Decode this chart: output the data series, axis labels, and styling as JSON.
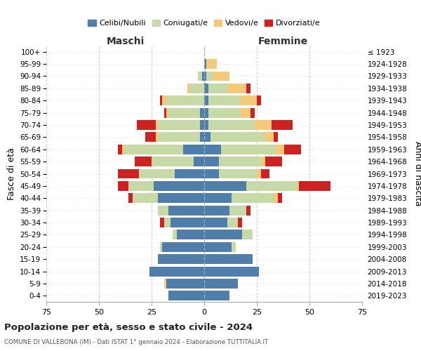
{
  "age_groups": [
    "100+",
    "95-99",
    "90-94",
    "85-89",
    "80-84",
    "75-79",
    "70-74",
    "65-69",
    "60-64",
    "55-59",
    "50-54",
    "45-49",
    "40-44",
    "35-39",
    "30-34",
    "25-29",
    "20-24",
    "15-19",
    "10-14",
    "5-9",
    "0-4"
  ],
  "birth_years": [
    "≤ 1923",
    "1924-1928",
    "1929-1933",
    "1934-1938",
    "1939-1943",
    "1944-1948",
    "1949-1953",
    "1954-1958",
    "1959-1963",
    "1964-1968",
    "1969-1973",
    "1974-1978",
    "1979-1983",
    "1984-1988",
    "1989-1993",
    "1994-1998",
    "1999-2003",
    "2004-2008",
    "2009-2013",
    "2014-2018",
    "2019-2023"
  ],
  "colors": {
    "celibi": "#4f7eaa",
    "coniugati": "#c8d9a8",
    "vedovi": "#f5c97a",
    "divorziati": "#cc2222"
  },
  "males": {
    "celibi": [
      0,
      0,
      1,
      0,
      0,
      2,
      2,
      2,
      10,
      5,
      14,
      24,
      22,
      17,
      16,
      13,
      20,
      22,
      26,
      18,
      17
    ],
    "coniugati": [
      0,
      0,
      2,
      7,
      18,
      15,
      20,
      20,
      28,
      20,
      17,
      12,
      12,
      5,
      3,
      2,
      1,
      0,
      0,
      0,
      0
    ],
    "vedovi": [
      0,
      0,
      0,
      1,
      2,
      1,
      1,
      1,
      1,
      0,
      0,
      0,
      0,
      0,
      0,
      0,
      0,
      0,
      0,
      1,
      0
    ],
    "divorziati": [
      0,
      0,
      0,
      0,
      1,
      1,
      9,
      5,
      2,
      8,
      10,
      5,
      2,
      0,
      2,
      0,
      0,
      0,
      0,
      0,
      0
    ]
  },
  "females": {
    "celibi": [
      0,
      1,
      1,
      2,
      2,
      2,
      2,
      3,
      8,
      7,
      7,
      20,
      13,
      12,
      11,
      18,
      13,
      23,
      26,
      16,
      12
    ],
    "coniugati": [
      0,
      0,
      3,
      9,
      15,
      15,
      22,
      26,
      26,
      20,
      18,
      24,
      20,
      8,
      5,
      5,
      2,
      0,
      0,
      0,
      0
    ],
    "vedovi": [
      0,
      5,
      8,
      9,
      8,
      5,
      8,
      4,
      4,
      2,
      2,
      1,
      2,
      0,
      0,
      0,
      0,
      0,
      0,
      0,
      0
    ],
    "divorziati": [
      0,
      0,
      0,
      2,
      2,
      2,
      10,
      2,
      8,
      8,
      4,
      15,
      2,
      2,
      2,
      0,
      0,
      0,
      0,
      0,
      0
    ]
  },
  "xlim": 75,
  "title": "Popolazione per età, sesso e stato civile - 2024",
  "subtitle": "COMUNE DI VALLEBONA (IM) - Dati ISTAT 1° gennaio 2024 - Elaborazione TUTTITALIA.IT",
  "ylabel": "Fasce di età",
  "ylabel_right": "Anni di nascita",
  "xlabel_left": "Maschi",
  "xlabel_right": "Femmine",
  "legend_labels": [
    "Celibi/Nubili",
    "Coniugati/e",
    "Vedovi/e",
    "Divorziati/e"
  ],
  "background_color": "#ffffff",
  "grid_color": "#cccccc"
}
